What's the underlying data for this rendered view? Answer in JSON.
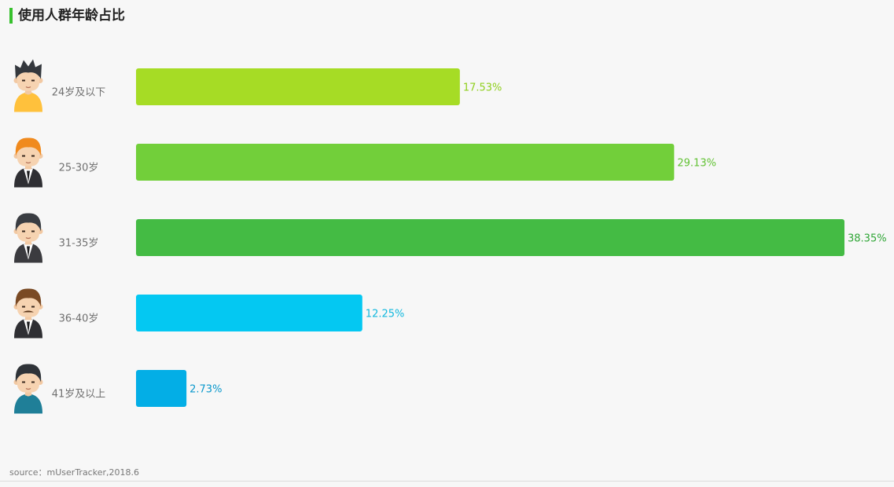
{
  "header": {
    "title": "使用人群年龄占比",
    "accent_color": "#38c12e"
  },
  "chart_data": {
    "type": "bar",
    "orientation": "horizontal",
    "title": "使用人群年龄占比",
    "categories": [
      "24岁及以下",
      "25-30岁",
      "31-35岁",
      "36-40岁",
      "41岁及以上"
    ],
    "values": [
      17.53,
      29.13,
      38.35,
      12.25,
      2.73
    ],
    "value_labels": [
      "17.53%",
      "29.13%",
      "38.35%",
      "12.25%",
      "2.73%"
    ],
    "unit": "%",
    "colors": [
      "#a6dc25",
      "#72cf3a",
      "#44bb44",
      "#04c8f2",
      "#03aee6"
    ],
    "label_colors": [
      "#8fcf1d",
      "#62c234",
      "#2fa636",
      "#11b8de",
      "#0a98cc"
    ],
    "avatars": [
      "young-man-yellow-shirt-icon",
      "man-orange-hair-suit-icon",
      "man-gray-suit-icon",
      "man-mustache-suit-icon",
      "man-teal-shirt-icon"
    ],
    "xlim": [
      0,
      38.35
    ],
    "grid": false,
    "legend": "none"
  },
  "footer": {
    "source": "source：mUserTracker,2018.6"
  }
}
